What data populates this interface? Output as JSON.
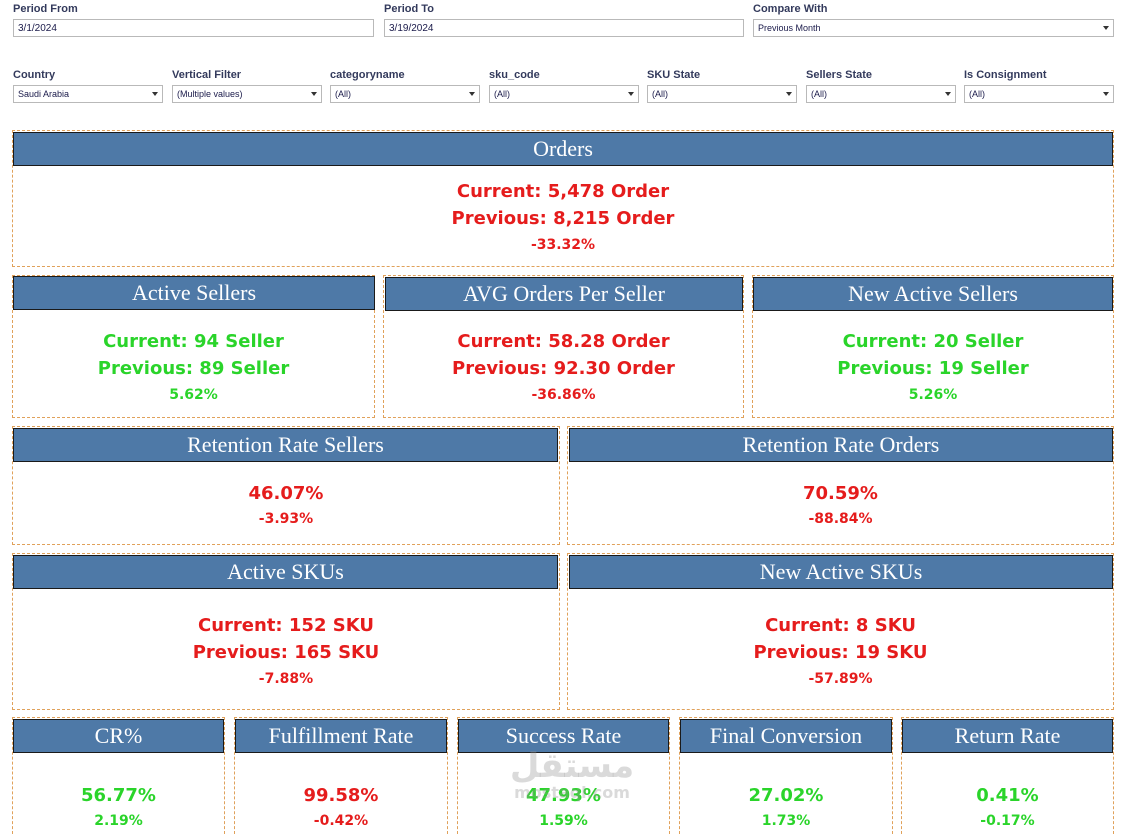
{
  "filters": {
    "period_from": {
      "label": "Period From",
      "value": "3/1/2024"
    },
    "period_to": {
      "label": "Period To",
      "value": "3/19/2024"
    },
    "compare_with": {
      "label": "Compare With",
      "value": "Previous Month"
    },
    "country": {
      "label": "Country",
      "value": "Saudi Arabia"
    },
    "vertical": {
      "label": "Vertical Filter",
      "value": "(Multiple values)"
    },
    "categoryname": {
      "label": "categoryname",
      "value": "(All)"
    },
    "sku_code": {
      "label": "sku_code",
      "value": "(All)"
    },
    "sku_state": {
      "label": "SKU State",
      "value": "(All)"
    },
    "sellers_state": {
      "label": "Sellers State",
      "value": "(All)"
    },
    "is_consignment": {
      "label": "Is Consignment",
      "value": "(All)"
    }
  },
  "kpis": {
    "orders": {
      "title": "Orders",
      "current": "Current: 5,478 Order",
      "previous": "Previous: 8,215 Order",
      "change": "-33.32%"
    },
    "active_sellers": {
      "title": "Active Sellers",
      "current": "Current: 94 Seller",
      "previous": "Previous: 89 Seller",
      "change": "5.62%"
    },
    "avg_orders": {
      "title": "AVG Orders Per Seller",
      "current": "Current: 58.28 Order",
      "previous": "Previous: 92.30 Order",
      "change": "-36.86%"
    },
    "new_active_sellers": {
      "title": "New Active Sellers",
      "current": "Current: 20 Seller",
      "previous": "Previous: 19 Seller",
      "change": "5.26%"
    },
    "retention_sellers": {
      "title": "Retention Rate Sellers",
      "value": "46.07%",
      "change": "-3.93%"
    },
    "retention_orders": {
      "title": "Retention Rate Orders",
      "value": "70.59%",
      "change": "-88.84%"
    },
    "active_skus": {
      "title": "Active SKUs",
      "current": "Current: 152 SKU",
      "previous": "Previous: 165 SKU",
      "change": "-7.88%"
    },
    "new_active_skus": {
      "title": "New Active SKUs",
      "current": "Current: 8 SKU",
      "previous": "Previous: 19 SKU",
      "change": "-57.89%"
    },
    "cr": {
      "title": "CR%",
      "value": "56.77%",
      "change": "2.19%"
    },
    "fulfillment": {
      "title": "Fulfillment Rate",
      "value": "99.58%",
      "change": "-0.42%"
    },
    "success": {
      "title": "Success Rate",
      "value": "47.93%",
      "change": "1.59%"
    },
    "final_conversion": {
      "title": "Final Conversion",
      "value": "27.02%",
      "change": "1.73%"
    },
    "return_rate": {
      "title": "Return Rate",
      "value": "0.41%",
      "change": "-0.17%"
    }
  },
  "watermark": {
    "arabic": "مستقل",
    "latin": "mostaql.com"
  },
  "colors": {
    "header": "#4e79a7",
    "negative": "#e51c1c",
    "positive": "#2ad42a",
    "card_border": "#e0a15a"
  }
}
